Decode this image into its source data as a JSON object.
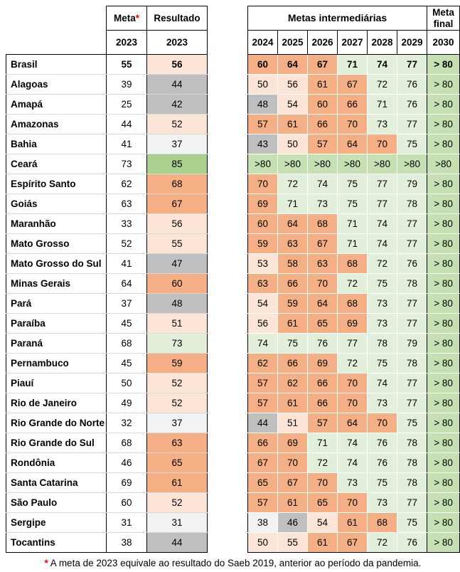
{
  "chart_data": {
    "type": "table",
    "title": "Metas intermediárias",
    "header": {
      "meta_label": "Meta",
      "meta_asterisk": "*",
      "meta_year": "2023",
      "resultado_label": "Resultado",
      "resultado_year": "2023",
      "metas_intermediarias_label": "Metas intermediárias",
      "years": [
        "2024",
        "2025",
        "2026",
        "2027",
        "2028",
        "2029"
      ],
      "meta_final_label": "Meta final",
      "final_year": "2030"
    },
    "rows": [
      {
        "name": "Brasil",
        "bold": true,
        "meta": 55,
        "resultado": 56,
        "inter": [
          60,
          64,
          67,
          71,
          74,
          77
        ],
        "final": "> 80"
      },
      {
        "name": "Alagoas",
        "bold": false,
        "meta": 39,
        "resultado": 44,
        "inter": [
          50,
          56,
          61,
          67,
          72,
          76
        ],
        "final": "> 80"
      },
      {
        "name": "Amapá",
        "bold": false,
        "meta": 25,
        "resultado": 42,
        "inter": [
          48,
          54,
          60,
          66,
          71,
          76
        ],
        "final": "> 80"
      },
      {
        "name": "Amazonas",
        "bold": false,
        "meta": 44,
        "resultado": 52,
        "inter": [
          57,
          61,
          66,
          70,
          73,
          77
        ],
        "final": "> 80"
      },
      {
        "name": "Bahia",
        "bold": false,
        "meta": 41,
        "resultado": 37,
        "inter": [
          43,
          50,
          57,
          64,
          70,
          75
        ],
        "final": "> 80"
      },
      {
        "name": "Ceará",
        "bold": false,
        "meta": 73,
        "resultado": 85,
        "inter": [
          ">80",
          ">80",
          ">80",
          ">80",
          ">80",
          ">80"
        ],
        "final": ">80"
      },
      {
        "name": "Espírito Santo",
        "bold": false,
        "meta": 62,
        "resultado": 68,
        "inter": [
          70,
          72,
          74,
          75,
          77,
          79
        ],
        "final": "> 80"
      },
      {
        "name": "Goiás",
        "bold": false,
        "meta": 63,
        "resultado": 67,
        "inter": [
          69,
          71,
          73,
          75,
          77,
          78
        ],
        "final": "> 80"
      },
      {
        "name": "Maranhão",
        "bold": false,
        "meta": 33,
        "resultado": 56,
        "inter": [
          60,
          64,
          68,
          71,
          74,
          77
        ],
        "final": "> 80"
      },
      {
        "name": "Mato Grosso",
        "bold": false,
        "meta": 52,
        "resultado": 55,
        "inter": [
          59,
          63,
          67,
          71,
          74,
          77
        ],
        "final": "> 80"
      },
      {
        "name": "Mato Grosso do Sul",
        "bold": false,
        "meta": 41,
        "resultado": 47,
        "inter": [
          53,
          58,
          63,
          68,
          72,
          76
        ],
        "final": "> 80"
      },
      {
        "name": "Minas Gerais",
        "bold": false,
        "meta": 64,
        "resultado": 60,
        "inter": [
          63,
          66,
          70,
          72,
          75,
          78
        ],
        "final": "> 80"
      },
      {
        "name": "Pará",
        "bold": false,
        "meta": 37,
        "resultado": 48,
        "inter": [
          54,
          59,
          64,
          68,
          73,
          77
        ],
        "final": "> 80"
      },
      {
        "name": "Paraíba",
        "bold": false,
        "meta": 45,
        "resultado": 51,
        "inter": [
          56,
          61,
          65,
          69,
          73,
          77
        ],
        "final": "> 80"
      },
      {
        "name": "Paraná",
        "bold": false,
        "meta": 68,
        "resultado": 73,
        "inter": [
          74,
          75,
          76,
          77,
          78,
          79
        ],
        "final": "> 80"
      },
      {
        "name": "Pernambuco",
        "bold": false,
        "meta": 45,
        "resultado": 59,
        "inter": [
          62,
          66,
          69,
          72,
          75,
          78
        ],
        "final": "> 80"
      },
      {
        "name": "Piauí",
        "bold": false,
        "meta": 50,
        "resultado": 52,
        "inter": [
          57,
          62,
          66,
          70,
          74,
          77
        ],
        "final": "> 80"
      },
      {
        "name": "Rio de Janeiro",
        "bold": false,
        "meta": 49,
        "resultado": 52,
        "inter": [
          57,
          61,
          66,
          70,
          73,
          77
        ],
        "final": "> 80"
      },
      {
        "name": "Rio Grande do Norte",
        "bold": false,
        "meta": 32,
        "resultado": 37,
        "inter": [
          44,
          51,
          57,
          64,
          70,
          75
        ],
        "final": "> 80"
      },
      {
        "name": "Rio Grande do Sul",
        "bold": false,
        "meta": 68,
        "resultado": 63,
        "inter": [
          66,
          69,
          71,
          74,
          76,
          78
        ],
        "final": "> 80"
      },
      {
        "name": "Rondônia",
        "bold": false,
        "meta": 46,
        "resultado": 65,
        "inter": [
          67,
          70,
          72,
          74,
          76,
          78
        ],
        "final": "> 80"
      },
      {
        "name": "Santa Catarina",
        "bold": false,
        "meta": 69,
        "resultado": 61,
        "inter": [
          65,
          67,
          70,
          73,
          75,
          78
        ],
        "final": "> 80"
      },
      {
        "name": "São Paulo",
        "bold": false,
        "meta": 60,
        "resultado": 52,
        "inter": [
          57,
          61,
          65,
          70,
          73,
          77
        ],
        "final": "> 80"
      },
      {
        "name": "Sergipe",
        "bold": false,
        "meta": 31,
        "resultado": 31,
        "inter": [
          38,
          46,
          54,
          61,
          68,
          75
        ],
        "final": "> 80"
      },
      {
        "name": "Tocantins",
        "bold": false,
        "meta": 38,
        "resultado": 44,
        "inter": [
          50,
          55,
          61,
          67,
          72,
          76
        ],
        "final": "> 80"
      }
    ],
    "footnote": {
      "asterisk": "*",
      "text": " A meta de 2023 equivale ao resultado do Saeb 2019, anterior ao período da pandemia."
    }
  },
  "colors": {
    "asterisk_red": "#ff0000",
    "over_80": "#c6e0b4",
    "bins": [
      {
        "max": 39,
        "color": "#f2f2f2"
      },
      {
        "max": 49,
        "color": "#bfbfbf"
      },
      {
        "max": 56,
        "color": "#fce4d6"
      },
      {
        "max": 70,
        "color": "#f4b084"
      },
      {
        "max": 79,
        "color": "#e2efda"
      },
      {
        "max": 200,
        "color": "#a9d08e"
      }
    ]
  }
}
